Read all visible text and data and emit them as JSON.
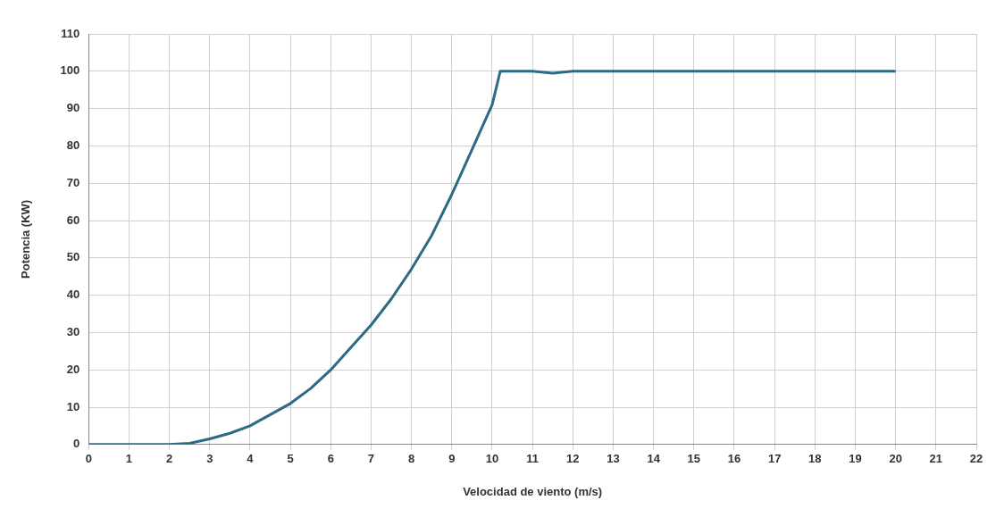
{
  "chart_data": {
    "type": "line",
    "xlabel": "Velocidad de viento (m/s)",
    "ylabel": "Potencia (KW)",
    "x": [
      0,
      1,
      2,
      2.5,
      3,
      3.5,
      4,
      4.5,
      5,
      5.5,
      6,
      6.5,
      7,
      7.5,
      8,
      8.5,
      9,
      9.5,
      10,
      10.2,
      11,
      11.5,
      12,
      13,
      14,
      15,
      16,
      17,
      18,
      19,
      20
    ],
    "series": [
      {
        "color": "#2b6b86",
        "values": [
          0,
          0,
          0,
          0.3,
          1.5,
          3,
          5,
          8,
          11,
          15,
          20,
          26,
          32,
          39,
          47,
          56,
          67,
          79,
          91,
          100,
          100,
          99.5,
          100,
          100,
          100,
          100,
          100,
          100,
          100,
          100,
          100
        ]
      }
    ],
    "xlim": [
      0,
      22
    ],
    "xticks": [
      0,
      1,
      2,
      3,
      4,
      5,
      6,
      7,
      8,
      9,
      10,
      11,
      12,
      13,
      14,
      15,
      16,
      17,
      18,
      19,
      20,
      21,
      22
    ],
    "ylim": [
      0,
      110
    ],
    "yticks": [
      0,
      10,
      20,
      30,
      40,
      50,
      60,
      70,
      80,
      90,
      100,
      110
    ],
    "grid": true,
    "legend": false,
    "marker": "none",
    "line_style": "solid"
  }
}
